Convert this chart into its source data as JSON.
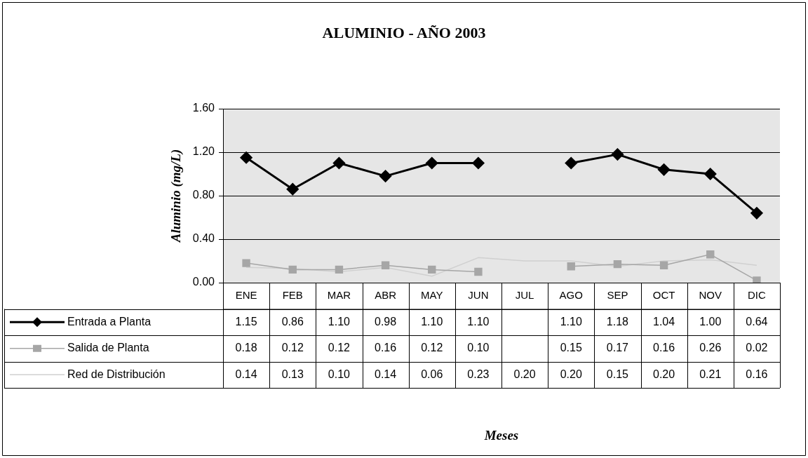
{
  "chart_data": {
    "type": "line",
    "title": "ALUMINIO - AÑO 2003",
    "annotations": [
      "Meses"
    ],
    "ylabel": "Aluminio (mg/L)",
    "categories": [
      "ENE",
      "FEB",
      "MAR",
      "ABR",
      "MAY",
      "JUN",
      "JUL",
      "AGO",
      "SEP",
      "OCT",
      "NOV",
      "DIC"
    ],
    "series": [
      {
        "name": "Entrada a Planta",
        "color": "#000000",
        "marker": "diamond",
        "values": [
          1.15,
          0.86,
          1.1,
          0.98,
          1.1,
          1.1,
          null,
          1.1,
          1.18,
          1.04,
          1.0,
          0.64
        ],
        "value_labels": [
          "1.15",
          "0.86",
          "1.10",
          "0.98",
          "1.10",
          "1.10",
          null,
          "1.10",
          "1.18",
          "1.04",
          "1.00",
          "0.64"
        ]
      },
      {
        "name": "Salida de Planta",
        "color": "#a6a6a6",
        "marker": "square",
        "values": [
          0.18,
          0.12,
          0.12,
          0.16,
          0.12,
          0.1,
          null,
          0.15,
          0.17,
          0.16,
          0.26,
          0.02
        ],
        "value_labels": [
          "0.18",
          "0.12",
          "0.12",
          "0.16",
          "0.12",
          "0.10",
          null,
          "0.15",
          "0.17",
          "0.16",
          "0.26",
          "0.02"
        ]
      },
      {
        "name": "Red de Distribución",
        "color": "#d0d0d0",
        "marker": "none",
        "values": [
          0.14,
          0.13,
          0.1,
          0.14,
          0.06,
          0.23,
          0.2,
          0.2,
          0.15,
          0.2,
          0.21,
          0.16
        ],
        "value_labels": [
          "0.14",
          "0.13",
          "0.10",
          "0.14",
          "0.06",
          "0.23",
          "0.20",
          "0.20",
          "0.15",
          "0.20",
          "0.21",
          "0.16"
        ]
      }
    ],
    "ylim": [
      0,
      1.6
    ],
    "yticks": [
      {
        "value": 0,
        "label": "0.00"
      },
      {
        "value": 0.4,
        "label": "0.40"
      },
      {
        "value": 0.8,
        "label": "0.80"
      },
      {
        "value": 1.2,
        "label": "1.20"
      },
      {
        "value": 1.6,
        "label": "1.60"
      }
    ],
    "grid": "y",
    "legend": "bottom left"
  }
}
